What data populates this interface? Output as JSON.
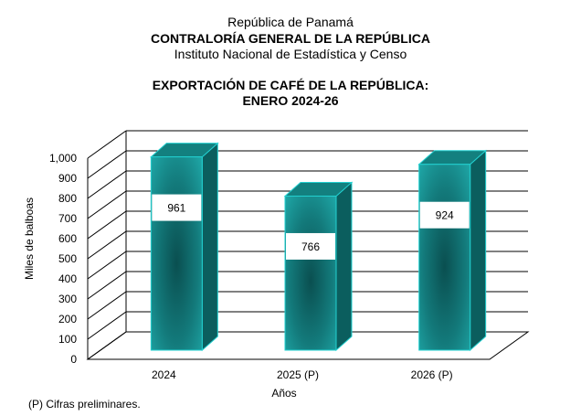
{
  "header": {
    "line1": "República de Panamá",
    "line2": "CONTRALORÍA GENERAL DE LA REPÚBLICA",
    "line3": "Instituto Nacional de Estadística y Censo"
  },
  "chart_data": {
    "type": "bar",
    "title": "EXPORTACIÓN DE CAFÉ DE LA REPÚBLICA:",
    "subtitle": "ENERO 2024-26",
    "xlabel": "Años",
    "ylabel": "Miles de balboas",
    "categories": [
      "2024",
      "2025 (P)",
      "2026 (P)"
    ],
    "values": [
      961,
      766,
      924
    ],
    "data_labels": [
      "961",
      "766",
      "924"
    ],
    "ylim": [
      0,
      1000
    ],
    "yticks": [
      0,
      100,
      200,
      300,
      400,
      500,
      600,
      700,
      800,
      900,
      1000
    ],
    "ytick_labels": [
      "0",
      "100",
      "200",
      "300",
      "400",
      "500",
      "600",
      "700",
      "800",
      "900",
      "1,000"
    ],
    "grid": true,
    "three_d": true,
    "colors": {
      "front": "#1a9a9a",
      "side": "#0b5e5e",
      "top": "#13807f",
      "edge": "#22d0d0"
    }
  },
  "footnote": "(P) Cifras  preliminares."
}
